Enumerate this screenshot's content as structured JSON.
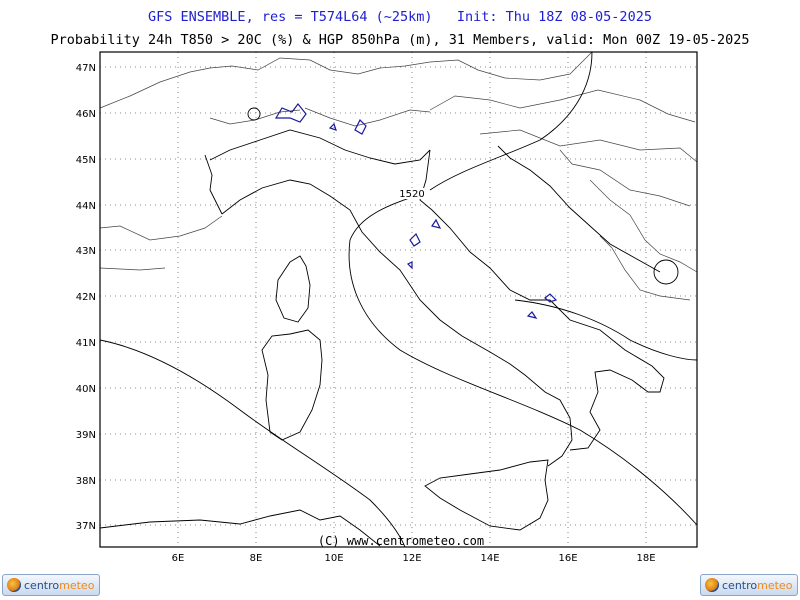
{
  "header": {
    "title_line1": "GFS ENSEMBLE, res = T574L64 (~25km)   Init: Thu 18Z 08-05-2025",
    "title_line2": "Probability 24h T850 > 20C (%) & HGP 850hPa (m), 31 Members, valid: Mon 00Z 19-05-2025"
  },
  "map": {
    "lat_labels": [
      "47N",
      "46N",
      "45N",
      "44N",
      "43N",
      "42N",
      "41N",
      "40N",
      "39N",
      "38N",
      "37N"
    ],
    "lon_labels": [
      "6E",
      "8E",
      "10E",
      "12E",
      "14E",
      "16E",
      "18E"
    ],
    "contour_label": "1520",
    "copyright": "(C) www.centrometeo.com",
    "colors": {
      "frame": "#000000",
      "grid": "#555555",
      "coast": "#000000",
      "prob_contour": "#1a1a9e",
      "title_blue": "#2020d0"
    }
  },
  "footer": {
    "logo_left": {
      "part1": "centro",
      "part2": "meteo"
    },
    "logo_right": {
      "part1": "centro",
      "part2": "meteo"
    }
  }
}
